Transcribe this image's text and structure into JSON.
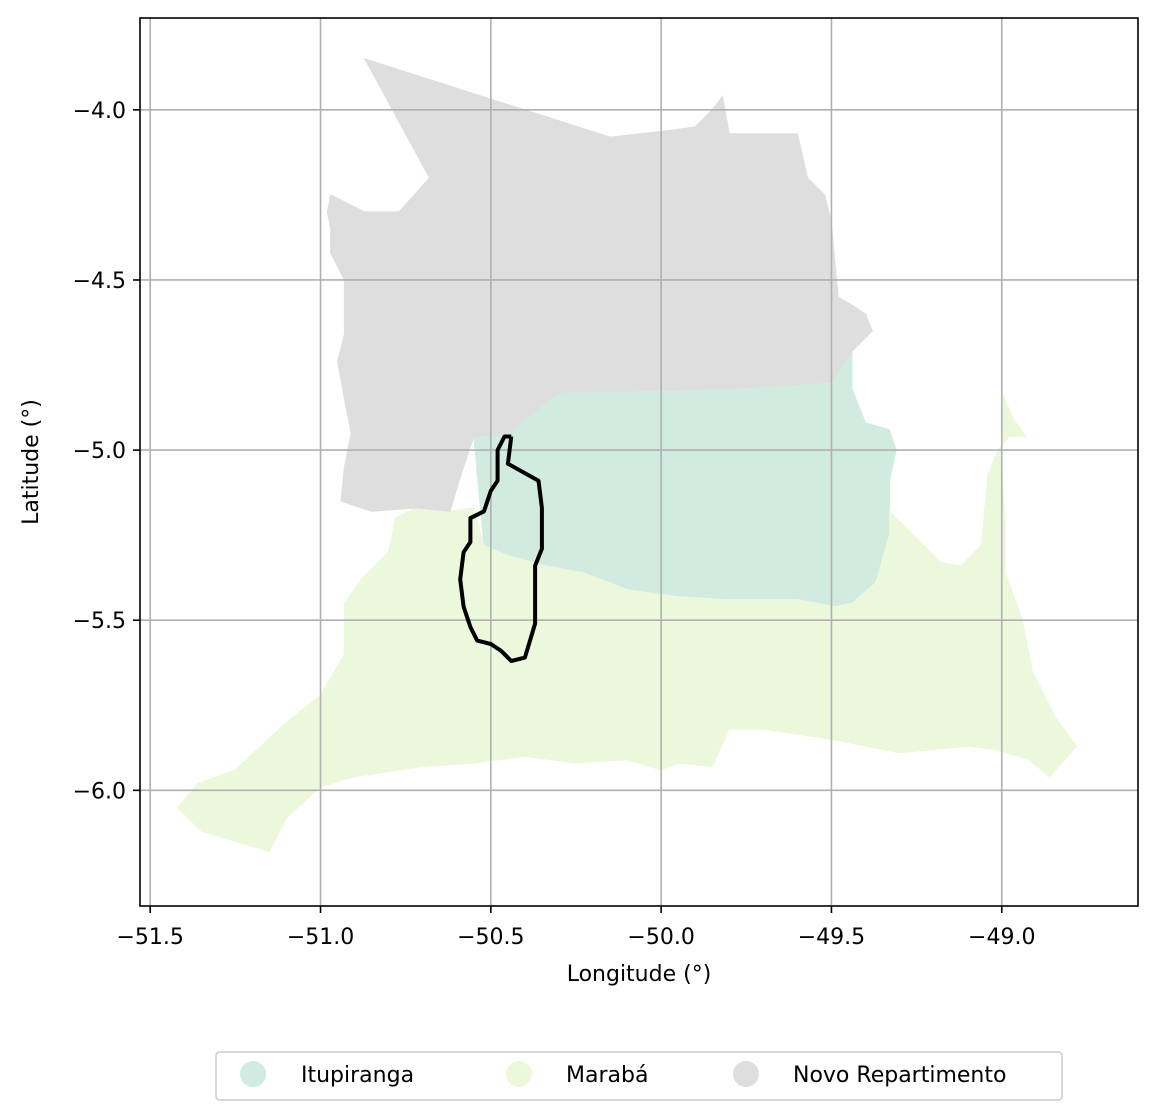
{
  "chart_data": {
    "type": "choropleth-map",
    "xlabel": "Longitude (°)",
    "ylabel": "Latitude (°)",
    "xlim": [
      -51.53,
      -48.6
    ],
    "ylim": [
      -6.34,
      -3.73
    ],
    "grid": true,
    "x_ticks": [
      {
        "value": -51.5,
        "label": "−51.5"
      },
      {
        "value": -51.0,
        "label": "−51.0"
      },
      {
        "value": -50.5,
        "label": "−50.5"
      },
      {
        "value": -50.0,
        "label": "−50.0"
      },
      {
        "value": -49.5,
        "label": "−49.5"
      },
      {
        "value": -49.0,
        "label": "−49.0"
      }
    ],
    "y_ticks": [
      {
        "value": -4.0,
        "label": "−4.0"
      },
      {
        "value": -4.5,
        "label": "−4.5"
      },
      {
        "value": -5.0,
        "label": "−5.0"
      },
      {
        "value": -5.5,
        "label": "−5.5"
      },
      {
        "value": -6.0,
        "label": "−6.0"
      }
    ],
    "legend_placement": "bottom-center, below plot",
    "regions": [
      {
        "name": "Itupiranga",
        "color": "#d1ebe0",
        "polygon": [
          [
            -50.55,
            -4.96
          ],
          [
            -50.45,
            -4.95
          ],
          [
            -50.3,
            -4.83
          ],
          [
            -49.8,
            -4.82
          ],
          [
            -49.5,
            -4.8
          ],
          [
            -49.44,
            -4.71
          ],
          [
            -49.44,
            -4.82
          ],
          [
            -49.4,
            -4.92
          ],
          [
            -49.33,
            -4.94
          ],
          [
            -49.31,
            -5.0
          ],
          [
            -49.33,
            -5.09
          ],
          [
            -49.33,
            -5.18
          ],
          [
            -49.33,
            -5.25
          ],
          [
            -49.35,
            -5.32
          ],
          [
            -49.37,
            -5.39
          ],
          [
            -49.44,
            -5.45
          ],
          [
            -49.49,
            -5.46
          ],
          [
            -49.6,
            -5.44
          ],
          [
            -49.7,
            -5.44
          ],
          [
            -49.8,
            -5.44
          ],
          [
            -49.96,
            -5.43
          ],
          [
            -50.1,
            -5.41
          ],
          [
            -50.23,
            -5.36
          ],
          [
            -50.34,
            -5.34
          ],
          [
            -50.45,
            -5.31
          ],
          [
            -50.52,
            -5.28
          ]
        ]
      },
      {
        "name": "Marabá",
        "color": "#ecf8dc",
        "polygon": [
          [
            -50.55,
            -5.17
          ],
          [
            -50.52,
            -5.28
          ],
          [
            -50.45,
            -5.31
          ],
          [
            -50.34,
            -5.34
          ],
          [
            -50.23,
            -5.36
          ],
          [
            -50.1,
            -5.41
          ],
          [
            -49.96,
            -5.43
          ],
          [
            -49.8,
            -5.44
          ],
          [
            -49.7,
            -5.44
          ],
          [
            -49.6,
            -5.44
          ],
          [
            -49.49,
            -5.46
          ],
          [
            -49.44,
            -5.45
          ],
          [
            -49.37,
            -5.39
          ],
          [
            -49.35,
            -5.32
          ],
          [
            -49.33,
            -5.25
          ],
          [
            -49.33,
            -5.18
          ],
          [
            -49.25,
            -5.26
          ],
          [
            -49.18,
            -5.33
          ],
          [
            -49.12,
            -5.34
          ],
          [
            -49.06,
            -5.28
          ],
          [
            -49.05,
            -5.17
          ],
          [
            -49.04,
            -5.07
          ],
          [
            -49.01,
            -5.0
          ],
          [
            -48.98,
            -4.96
          ],
          [
            -48.93,
            -4.96
          ],
          [
            -48.97,
            -4.9
          ],
          [
            -49.0,
            -4.83
          ],
          [
            -49.0,
            -4.93
          ],
          [
            -49.0,
            -5.06
          ],
          [
            -48.99,
            -5.2
          ],
          [
            -48.99,
            -5.36
          ],
          [
            -48.94,
            -5.5
          ],
          [
            -48.91,
            -5.65
          ],
          [
            -48.84,
            -5.79
          ],
          [
            -48.78,
            -5.87
          ],
          [
            -48.86,
            -5.96
          ],
          [
            -48.92,
            -5.91
          ],
          [
            -49.02,
            -5.88
          ],
          [
            -49.1,
            -5.87
          ],
          [
            -49.3,
            -5.89
          ],
          [
            -49.5,
            -5.85
          ],
          [
            -49.7,
            -5.82
          ],
          [
            -49.8,
            -5.82
          ],
          [
            -49.85,
            -5.93
          ],
          [
            -49.95,
            -5.92
          ],
          [
            -50.0,
            -5.94
          ],
          [
            -50.1,
            -5.91
          ],
          [
            -50.25,
            -5.92
          ],
          [
            -50.4,
            -5.9
          ],
          [
            -50.55,
            -5.92
          ],
          [
            -50.7,
            -5.93
          ],
          [
            -50.9,
            -5.96
          ],
          [
            -51.0,
            -5.99
          ],
          [
            -51.1,
            -6.08
          ],
          [
            -51.15,
            -6.18
          ],
          [
            -51.25,
            -6.15
          ],
          [
            -51.35,
            -6.12
          ],
          [
            -51.42,
            -6.05
          ],
          [
            -51.36,
            -5.98
          ],
          [
            -51.25,
            -5.94
          ],
          [
            -51.1,
            -5.8
          ],
          [
            -51.0,
            -5.72
          ],
          [
            -50.93,
            -5.6
          ],
          [
            -50.93,
            -5.45
          ],
          [
            -50.88,
            -5.38
          ],
          [
            -50.8,
            -5.3
          ],
          [
            -50.78,
            -5.2
          ],
          [
            -50.72,
            -5.17
          ],
          [
            -50.62,
            -5.18
          ]
        ]
      },
      {
        "name": "Novo Repartimento",
        "color": "#dedede",
        "polygon": [
          [
            -50.87,
            -3.85
          ],
          [
            -50.15,
            -4.08
          ],
          [
            -49.97,
            -4.06
          ],
          [
            -49.9,
            -4.05
          ],
          [
            -49.85,
            -4.0
          ],
          [
            -49.82,
            -3.96
          ],
          [
            -49.8,
            -4.07
          ],
          [
            -49.6,
            -4.07
          ],
          [
            -49.57,
            -4.2
          ],
          [
            -49.52,
            -4.25
          ],
          [
            -49.5,
            -4.33
          ],
          [
            -49.49,
            -4.45
          ],
          [
            -49.48,
            -4.55
          ],
          [
            -49.43,
            -4.58
          ],
          [
            -49.4,
            -4.6
          ],
          [
            -49.38,
            -4.65
          ],
          [
            -49.44,
            -4.71
          ],
          [
            -49.5,
            -4.8
          ],
          [
            -49.8,
            -4.82
          ],
          [
            -50.3,
            -4.83
          ],
          [
            -50.45,
            -4.95
          ],
          [
            -50.55,
            -4.96
          ],
          [
            -50.59,
            -5.08
          ],
          [
            -50.62,
            -5.18
          ],
          [
            -50.72,
            -5.17
          ],
          [
            -50.85,
            -5.18
          ],
          [
            -50.94,
            -5.15
          ],
          [
            -50.93,
            -5.05
          ],
          [
            -50.91,
            -4.95
          ],
          [
            -50.93,
            -4.85
          ],
          [
            -50.95,
            -4.74
          ],
          [
            -50.93,
            -4.66
          ],
          [
            -50.93,
            -4.5
          ],
          [
            -50.97,
            -4.42
          ],
          [
            -50.97,
            -4.35
          ],
          [
            -50.98,
            -4.3
          ],
          [
            -50.97,
            -4.25
          ],
          [
            -50.87,
            -4.3
          ],
          [
            -50.77,
            -4.3
          ],
          [
            -50.68,
            -4.2
          ]
        ]
      }
    ],
    "outline": {
      "color": "#000000",
      "polyline": [
        [
          -50.44,
          -4.96
        ],
        [
          -50.45,
          -5.04
        ],
        [
          -50.36,
          -5.09
        ],
        [
          -50.35,
          -5.17
        ],
        [
          -50.35,
          -5.29
        ],
        [
          -50.37,
          -5.34
        ],
        [
          -50.37,
          -5.51
        ],
        [
          -50.4,
          -5.61
        ],
        [
          -50.44,
          -5.62
        ],
        [
          -50.47,
          -5.59
        ],
        [
          -50.5,
          -5.57
        ],
        [
          -50.54,
          -5.56
        ],
        [
          -50.56,
          -5.52
        ],
        [
          -50.58,
          -5.46
        ],
        [
          -50.59,
          -5.38
        ],
        [
          -50.58,
          -5.3
        ],
        [
          -50.56,
          -5.27
        ],
        [
          -50.56,
          -5.2
        ],
        [
          -50.52,
          -5.18
        ],
        [
          -50.5,
          -5.12
        ],
        [
          -50.48,
          -5.09
        ],
        [
          -50.48,
          -5.0
        ],
        [
          -50.46,
          -4.96
        ],
        [
          -50.44,
          -4.96
        ]
      ]
    }
  },
  "legend": {
    "items": [
      {
        "label": "Itupiranga",
        "color": "#d1ebe0"
      },
      {
        "label": "Marabá",
        "color": "#ecf8dc"
      },
      {
        "label": "Novo Repartimento",
        "color": "#dedede"
      }
    ]
  }
}
